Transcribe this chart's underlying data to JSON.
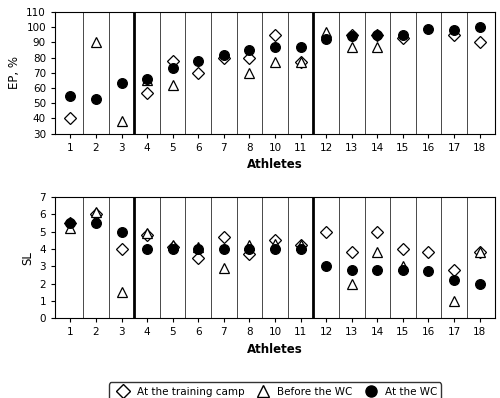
{
  "athletes": [
    1,
    2,
    3,
    4,
    5,
    6,
    7,
    8,
    10,
    11,
    12,
    13,
    14,
    15,
    16,
    17,
    18
  ],
  "ep_training": [
    40,
    null,
    null,
    57,
    78,
    70,
    80,
    80,
    95,
    77,
    null,
    95,
    95,
    93,
    null,
    95,
    90
  ],
  "ep_before": [
    null,
    90,
    38,
    65,
    62,
    null,
    null,
    70,
    77,
    77,
    97,
    87,
    87,
    null,
    null,
    null,
    null
  ],
  "ep_wc": [
    55,
    53,
    63,
    66,
    73,
    78,
    82,
    85,
    87,
    87,
    92,
    94,
    95,
    95,
    99,
    98,
    100
  ],
  "sl_training": [
    5.5,
    6.0,
    4.0,
    4.8,
    4.1,
    3.5,
    4.7,
    3.7,
    4.5,
    4.2,
    5.0,
    3.8,
    5.0,
    4.0,
    3.8,
    2.8,
    3.8
  ],
  "sl_before": [
    5.2,
    6.1,
    1.5,
    4.9,
    4.2,
    4.1,
    2.9,
    4.2,
    4.3,
    4.2,
    null,
    2.0,
    3.8,
    3.0,
    null,
    1.0,
    3.8
  ],
  "sl_wc": [
    5.5,
    5.5,
    5.0,
    4.0,
    4.0,
    4.0,
    4.0,
    4.0,
    4.0,
    4.0,
    3.0,
    2.8,
    2.8,
    2.8,
    2.7,
    2.2,
    2.0
  ],
  "thick_after_idx": [
    2,
    9
  ],
  "ep_ylim": [
    30,
    110
  ],
  "ep_yticks": [
    30,
    40,
    50,
    60,
    70,
    80,
    90,
    100,
    110
  ],
  "sl_ylim": [
    0,
    7
  ],
  "sl_yticks": [
    0,
    1,
    2,
    3,
    4,
    5,
    6,
    7
  ],
  "xlabel": "Athletes",
  "ep_ylabel": "EP, %",
  "sl_ylabel": "SL",
  "legend_labels": [
    "At the training camp",
    "Before the WC",
    "At the WC"
  ],
  "figsize": [
    5.0,
    3.98
  ],
  "dpi": 100
}
